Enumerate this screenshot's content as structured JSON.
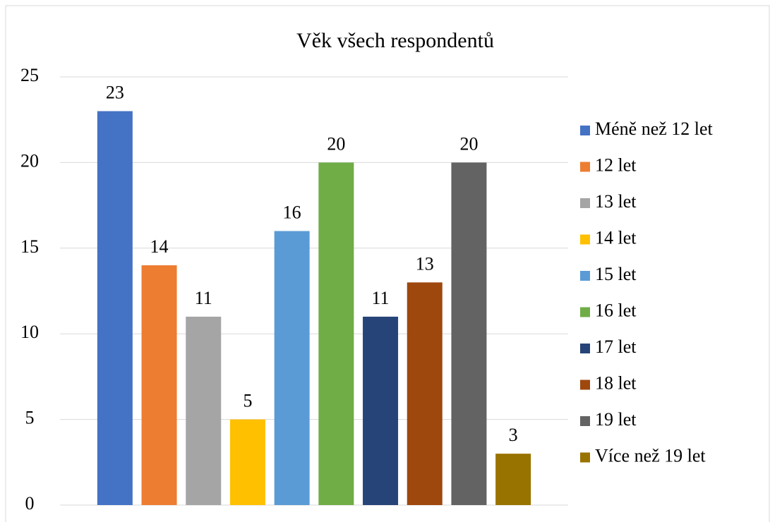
{
  "chart_data": {
    "type": "bar",
    "title": "Věk všech respondentů",
    "categories": [
      null
    ],
    "series": [
      {
        "name": "Méně než 12 let",
        "color": "#4472c4",
        "values": [
          23
        ]
      },
      {
        "name": "12 let",
        "color": "#ed7d31",
        "values": [
          14
        ]
      },
      {
        "name": "13 let",
        "color": "#a5a5a5",
        "values": [
          11
        ]
      },
      {
        "name": "14 let",
        "color": "#ffc000",
        "values": [
          5
        ]
      },
      {
        "name": "15 let",
        "color": "#5b9bd5",
        "values": [
          16
        ]
      },
      {
        "name": "16 let",
        "color": "#70ad47",
        "values": [
          20
        ]
      },
      {
        "name": "17 let",
        "color": "#264478",
        "values": [
          11
        ]
      },
      {
        "name": "18 let",
        "color": "#9e480e",
        "values": [
          13
        ]
      },
      {
        "name": "19 let",
        "color": "#636363",
        "values": [
          20
        ]
      },
      {
        "name": "Více než 19 let",
        "color": "#997300",
        "values": [
          3
        ]
      }
    ],
    "ylim": [
      0,
      25
    ],
    "yticks": [
      0,
      5,
      10,
      15,
      20,
      25
    ],
    "grid": true,
    "legend": "right"
  }
}
